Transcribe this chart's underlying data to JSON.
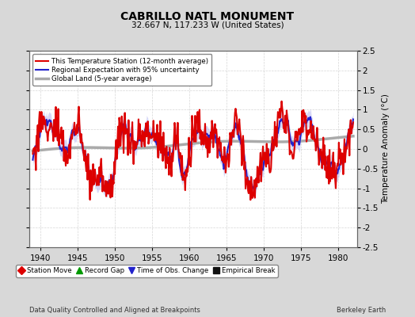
{
  "title": "CABRILLO NATL MONUMENT",
  "subtitle": "32.667 N, 117.233 W (United States)",
  "xlabel_bottom": "Data Quality Controlled and Aligned at Breakpoints",
  "xlabel_right": "Berkeley Earth",
  "ylabel_right": "Temperature Anomaly (°C)",
  "xlim": [
    1938.5,
    1982.5
  ],
  "ylim": [
    -2.5,
    2.5
  ],
  "xticks": [
    1940,
    1945,
    1950,
    1955,
    1960,
    1965,
    1970,
    1975,
    1980
  ],
  "yticks": [
    -2.5,
    -2,
    -1.5,
    -1,
    -0.5,
    0,
    0.5,
    1,
    1.5,
    2,
    2.5
  ],
  "yticklabels": [
    "-2.5",
    "-2",
    "-1.5",
    "-1",
    "-0.5",
    "0",
    "0.5",
    "1",
    "1.5",
    "2",
    "2.5"
  ],
  "background_color": "#d8d8d8",
  "plot_bg_color": "#ffffff",
  "grid_color": "#cccccc",
  "legend_entries": [
    {
      "label": "This Temperature Station (12-month average)",
      "color": "#dd0000",
      "lw": 1.5
    },
    {
      "label": "Regional Expectation with 95% uncertainty",
      "color": "#2222cc",
      "lw": 1.5
    },
    {
      "label": "Global Land (5-year average)",
      "color": "#aaaaaa",
      "lw": 2.5
    }
  ],
  "legend_markers": [
    {
      "label": "Station Move",
      "color": "#dd0000",
      "marker": "D"
    },
    {
      "label": "Record Gap",
      "color": "#009900",
      "marker": "^"
    },
    {
      "label": "Time of Obs. Change",
      "color": "#2222cc",
      "marker": "v"
    },
    {
      "label": "Empirical Break",
      "color": "#111111",
      "marker": "s"
    }
  ],
  "uncertainty_color": "#aaaaee",
  "uncertainty_alpha": 0.45
}
